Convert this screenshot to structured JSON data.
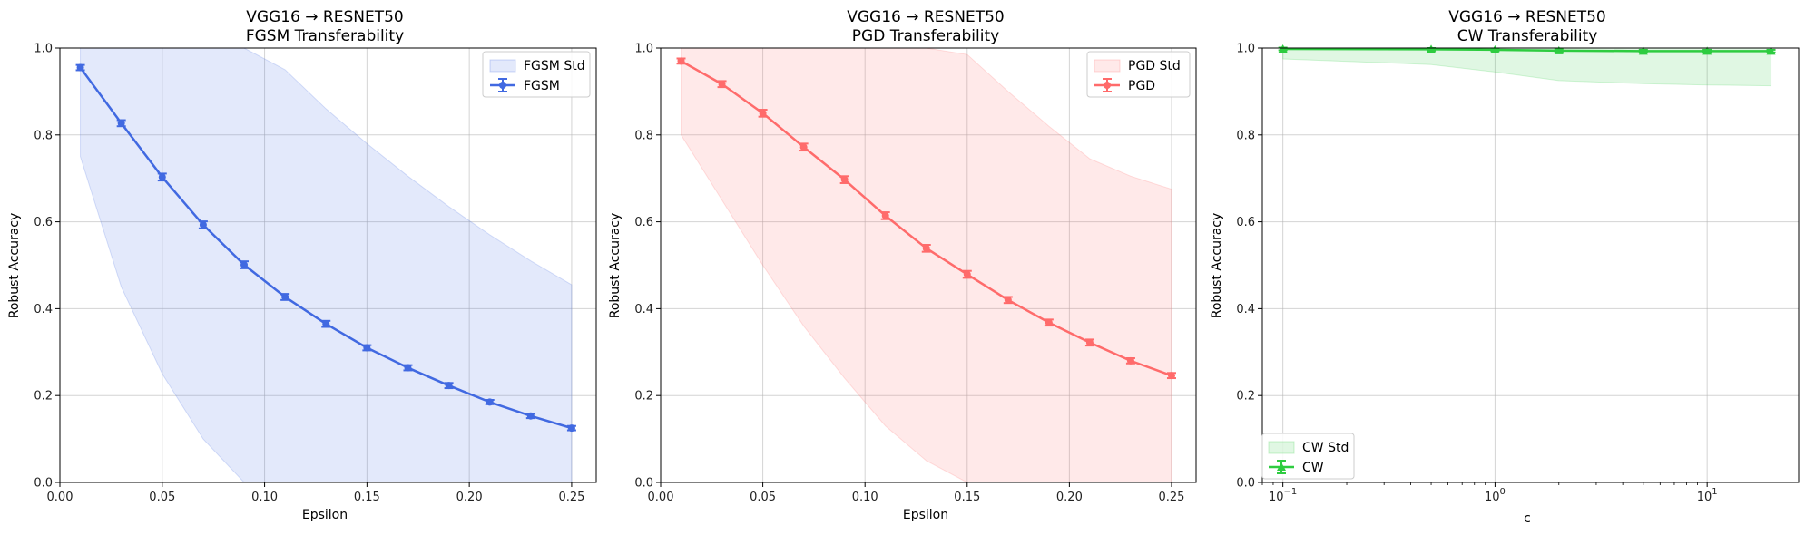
{
  "chart_data": [
    {
      "type": "line",
      "title": "VGG16 → RESNET50",
      "subtitle": "FGSM Transferability",
      "xlabel": "Epsilon",
      "ylabel": "Robust Accuracy",
      "xscale": "linear",
      "xlim": [
        0.0,
        0.262
      ],
      "ylim": [
        0.0,
        1.0
      ],
      "xticks": [
        0.0,
        0.05,
        0.1,
        0.15,
        0.2,
        0.25
      ],
      "xtick_labels": [
        "0.00",
        "0.05",
        "0.10",
        "0.15",
        "0.20",
        "0.25"
      ],
      "yticks": [
        0.0,
        0.2,
        0.4,
        0.6,
        0.8,
        1.0
      ],
      "ytick_labels": [
        "0.0",
        "0.2",
        "0.4",
        "0.6",
        "0.8",
        "1.0"
      ],
      "grid": true,
      "legend_position": "top-right",
      "color": "#4169e1",
      "band_color": "#4169e1",
      "marker": "circle",
      "legend": {
        "band_label": "FGSM Std",
        "line_label": "FGSM"
      },
      "x": [
        0.01,
        0.03,
        0.05,
        0.07,
        0.09,
        0.11,
        0.13,
        0.15,
        0.17,
        0.19,
        0.21,
        0.23,
        0.25
      ],
      "series": [
        {
          "name": "FGSM",
          "values": [
            0.955,
            0.827,
            0.703,
            0.593,
            0.501,
            0.427,
            0.365,
            0.31,
            0.264,
            0.223,
            0.185,
            0.153,
            0.125
          ],
          "error": [
            0.006,
            0.007,
            0.008,
            0.008,
            0.008,
            0.007,
            0.007,
            0.006,
            0.006,
            0.006,
            0.005,
            0.005,
            0.005
          ],
          "std_upper": [
            1.0,
            1.0,
            1.0,
            1.0,
            1.0,
            0.95,
            0.86,
            0.78,
            0.705,
            0.635,
            0.57,
            0.51,
            0.455
          ],
          "std_lower": [
            0.75,
            0.45,
            0.25,
            0.1,
            0.0,
            0.0,
            0.0,
            0.0,
            0.0,
            0.0,
            0.0,
            0.0,
            0.0
          ]
        }
      ]
    },
    {
      "type": "line",
      "title": "VGG16 → RESNET50",
      "subtitle": "PGD Transferability",
      "xlabel": "Epsilon",
      "ylabel": "Robust Accuracy",
      "xscale": "linear",
      "xlim": [
        0.0,
        0.262
      ],
      "ylim": [
        0.0,
        1.0
      ],
      "xticks": [
        0.0,
        0.05,
        0.1,
        0.15,
        0.2,
        0.25
      ],
      "xtick_labels": [
        "0.00",
        "0.05",
        "0.10",
        "0.15",
        "0.20",
        "0.25"
      ],
      "yticks": [
        0.0,
        0.2,
        0.4,
        0.6,
        0.8,
        1.0
      ],
      "ytick_labels": [
        "0.0",
        "0.2",
        "0.4",
        "0.6",
        "0.8",
        "1.0"
      ],
      "grid": true,
      "legend_position": "top-right",
      "color": "#ff6b6b",
      "band_color": "#ff6b6b",
      "marker": "circle",
      "legend": {
        "band_label": "PGD Std",
        "line_label": "PGD"
      },
      "x": [
        0.01,
        0.03,
        0.05,
        0.07,
        0.09,
        0.11,
        0.13,
        0.15,
        0.17,
        0.19,
        0.21,
        0.23,
        0.25
      ],
      "series": [
        {
          "name": "PGD",
          "values": [
            0.97,
            0.917,
            0.85,
            0.772,
            0.697,
            0.614,
            0.539,
            0.479,
            0.42,
            0.368,
            0.322,
            0.28,
            0.246
          ],
          "error": [
            0.006,
            0.007,
            0.008,
            0.008,
            0.008,
            0.008,
            0.008,
            0.008,
            0.007,
            0.007,
            0.007,
            0.006,
            0.006
          ],
          "std_upper": [
            1.0,
            1.0,
            1.0,
            1.0,
            1.0,
            1.0,
            1.0,
            0.985,
            0.9,
            0.82,
            0.745,
            0.705,
            0.675
          ],
          "std_lower": [
            0.8,
            0.65,
            0.5,
            0.36,
            0.24,
            0.13,
            0.05,
            0.0,
            0.0,
            0.0,
            0.0,
            0.0,
            0.0
          ]
        }
      ]
    },
    {
      "type": "line",
      "title": "VGG16 → RESNET50",
      "subtitle": "CW Transferability",
      "xlabel": "c",
      "ylabel": "Robust Accuracy",
      "xscale": "log",
      "xlim": [
        0.08,
        27
      ],
      "ylim": [
        0.0,
        1.0
      ],
      "xticks": [
        0.1,
        1,
        10
      ],
      "xtick_labels": [
        {
          "base": "10",
          "exp": "−1"
        },
        {
          "base": "10",
          "exp": "0"
        },
        {
          "base": "10",
          "exp": "1"
        }
      ],
      "yticks": [
        0.0,
        0.2,
        0.4,
        0.6,
        0.8,
        1.0
      ],
      "ytick_labels": [
        "0.0",
        "0.2",
        "0.4",
        "0.6",
        "0.8",
        "1.0"
      ],
      "grid": true,
      "legend_position": "bottom-left",
      "color": "#2ecc40",
      "band_color": "#2ecc40",
      "marker": "triangle",
      "legend": {
        "band_label": "CW Std",
        "line_label": "CW"
      },
      "x": [
        0.1,
        0.5,
        1,
        2,
        5,
        10,
        20
      ],
      "series": [
        {
          "name": "CW",
          "values": [
            0.998,
            0.997,
            0.996,
            0.994,
            0.993,
            0.993,
            0.993
          ],
          "error": [
            0.003,
            0.003,
            0.003,
            0.003,
            0.003,
            0.003,
            0.003
          ],
          "std_upper": [
            1.0,
            1.0,
            1.0,
            1.0,
            1.0,
            1.0,
            1.0
          ],
          "std_lower": [
            0.975,
            0.962,
            0.945,
            0.925,
            0.918,
            0.915,
            0.913
          ]
        }
      ]
    }
  ]
}
